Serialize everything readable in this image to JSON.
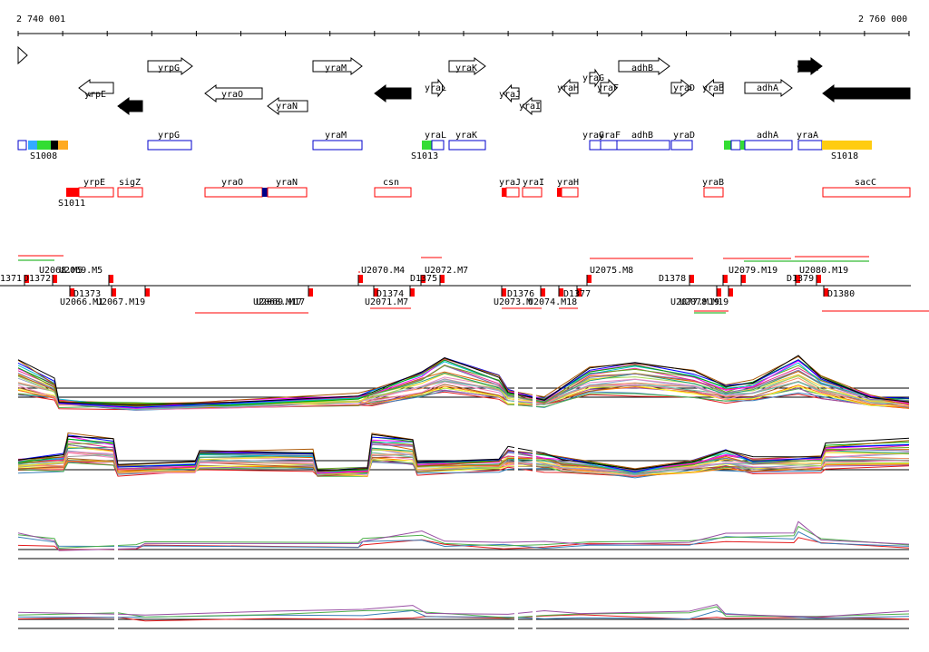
{
  "coordinates": {
    "start": "2 740 001",
    "end": "2 760 000"
  },
  "genes": [
    {
      "name": "yrpE",
      "strand": "-",
      "color": "white"
    },
    {
      "name": "sigZ",
      "strand": "-",
      "color": "black"
    },
    {
      "name": "yrpG",
      "strand": "+",
      "color": "white"
    },
    {
      "name": "yraO",
      "strand": "-",
      "color": "white"
    },
    {
      "name": "yraN",
      "strand": "-",
      "color": "white"
    },
    {
      "name": "yraM",
      "strand": "+",
      "color": "white"
    },
    {
      "name": "csn",
      "strand": "-",
      "color": "black"
    },
    {
      "name": "yraL",
      "strand": "+",
      "color": "white"
    },
    {
      "name": "yraK",
      "strand": "+",
      "color": "white"
    },
    {
      "name": "yraJ",
      "strand": "-",
      "color": "white"
    },
    {
      "name": "yraI",
      "strand": "-",
      "color": "white"
    },
    {
      "name": "yraH",
      "strand": "-",
      "color": "white"
    },
    {
      "name": "yraG",
      "strand": "+",
      "color": "white"
    },
    {
      "name": "yraF",
      "strand": "+",
      "color": "white"
    },
    {
      "name": "adhB",
      "strand": "+",
      "color": "white"
    },
    {
      "name": "yraD",
      "strand": "+",
      "color": "white"
    },
    {
      "name": "yraB",
      "strand": "-",
      "color": "white"
    },
    {
      "name": "adhA",
      "strand": "+",
      "color": "white"
    },
    {
      "name": "yraA",
      "strand": "+",
      "color": "black"
    },
    {
      "name": "sacC",
      "strand": "-",
      "color": "black"
    }
  ],
  "plus_track": {
    "genes": [
      "yrpG",
      "yraM",
      "yraL",
      "yraK",
      "yraG",
      "yraF",
      "adhB",
      "yraD",
      "adhA",
      "yraA"
    ],
    "segments": [
      "S1008",
      "S1013",
      "S1018"
    ]
  },
  "minus_track": {
    "genes": [
      "yrpE",
      "sigZ",
      "yraO",
      "yraN",
      "csn",
      "yraJ",
      "yraI",
      "yraH",
      "yraB",
      "sacC"
    ],
    "segments": [
      "S1011"
    ]
  },
  "features_upper": [
    "1371",
    "D1372",
    "U2068.M5",
    "U2069.M5",
    "U2070.M4",
    "D1375",
    "U2072.M7",
    "U2075.M8",
    "D1378",
    "U2079.M19",
    "U2080.M19",
    "D1379"
  ],
  "features_lower": [
    "U2066.M1",
    "U2067.M19",
    "D1373",
    "U2068.M17",
    "U2069.M17",
    "D1374",
    "U2071.M7",
    "D1376",
    "U2073.M",
    "U2074.M18",
    "D1377",
    "U2077.M19",
    "U2078.M19",
    "D1380"
  ],
  "colors": {
    "gene_outline": "#0000cc",
    "minus_outline": "#ff0000",
    "axis": "#000000"
  }
}
